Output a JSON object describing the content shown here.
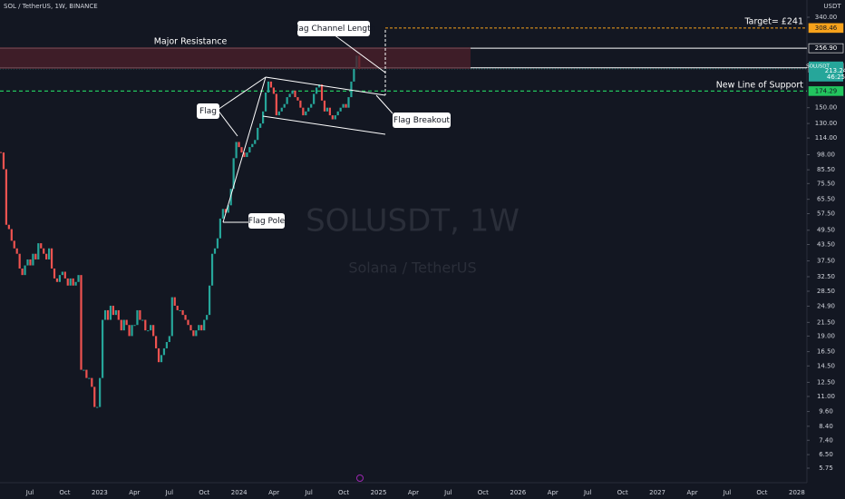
{
  "header": {
    "symbol": "SOL / TetherUS, 1W, BINANCE",
    "currency": "USDT"
  },
  "watermark": {
    "symbol": "SOLUSDT, 1W",
    "name": "Solana / TetherUS"
  },
  "annotations": {
    "resistance": "Major Resistance",
    "target": "Target= £241",
    "support": "New Line of Support",
    "channel": "Flag Channel Length",
    "flag": "Flag",
    "pole": "Flag Pole",
    "breakout": "Flag Breakout"
  },
  "levels": [
    {
      "price": 308.46,
      "color": "#f7a21b"
    },
    {
      "price": {
        "value": 256.9,
        "label": "256.90"
      },
      "color": "#ffffff"
    },
    {
      "price": {
        "value": 215.1,
        "label": "215.10"
      },
      "color": "#ffffff"
    },
    {
      "price": 174.29,
      "color": "#22c55e"
    }
  ],
  "last": {
    "symbol": "SOLUSDT",
    "price": 213.24,
    "countdown": "46:25",
    "color": "#26a69a"
  },
  "chart_data": {
    "type": "candlestick",
    "log": true,
    "ylim": [
      5.75,
      340
    ],
    "yticks": [
      {
        "value": 340,
        "label": "340.00"
      },
      {
        "value": 150,
        "label": "150.00"
      },
      {
        "value": 130,
        "label": "130.00"
      },
      {
        "value": 114,
        "label": "114.00"
      },
      {
        "value": 98,
        "label": "98.00"
      },
      {
        "value": 85.5,
        "label": "85.50"
      },
      {
        "value": 75.5,
        "label": "75.50"
      },
      {
        "value": 65.5,
        "label": "65.50"
      },
      {
        "value": 57.5,
        "label": "57.50"
      },
      {
        "value": 49.5,
        "label": "49.50"
      },
      {
        "value": 43.5,
        "label": "43.50"
      },
      {
        "value": 37.5,
        "label": "37.50"
      },
      {
        "value": 32.5,
        "label": "32.50"
      },
      {
        "value": 28.5,
        "label": "28.50"
      },
      {
        "value": 24.9,
        "label": "24.90"
      },
      {
        "value": 21.5,
        "label": "21.50"
      },
      {
        "value": 19,
        "label": "19.00"
      },
      {
        "value": 16.5,
        "label": "16.50"
      },
      {
        "value": 14.5,
        "label": "14.50"
      },
      {
        "value": 12.5,
        "label": "12.50"
      },
      {
        "value": 11,
        "label": "11.00"
      },
      {
        "value": 9.6,
        "label": "9.60"
      },
      {
        "value": 8.4,
        "label": "8.40"
      },
      {
        "value": 7.4,
        "label": "7.40"
      },
      {
        "value": 6.5,
        "label": "6.50"
      },
      {
        "value": 5.75,
        "label": "5.75"
      }
    ],
    "time_labels": [
      "Jul",
      "Oct",
      "2023",
      "Apr",
      "Jul",
      "Oct",
      "2024",
      "Apr",
      "Jul",
      "Oct",
      "2025",
      "Apr",
      "Jul",
      "Oct",
      "2026",
      "Apr",
      "Jul",
      "Oct",
      "2027",
      "Apr",
      "Jul",
      "Oct",
      "2028"
    ],
    "up_color": "#26a69a",
    "down_color": "#ef5350",
    "values": [
      100,
      86,
      52,
      50,
      45,
      42,
      40,
      35,
      33,
      36,
      38,
      36,
      40,
      38,
      44,
      42,
      40,
      38,
      42,
      35,
      32,
      31,
      33,
      34,
      32,
      30,
      32,
      30,
      31,
      33,
      14,
      14,
      13,
      13,
      12,
      10,
      10,
      13,
      22,
      24,
      22,
      25,
      23,
      24,
      22,
      20,
      22,
      21,
      19,
      21,
      21,
      24,
      22,
      22,
      20,
      20,
      21,
      19,
      17,
      15,
      16,
      17,
      18,
      19,
      27,
      25,
      24,
      24,
      23,
      22,
      21,
      20,
      19,
      20,
      21,
      20,
      22,
      23,
      30,
      40,
      42,
      46,
      55,
      60,
      58,
      62,
      72,
      95,
      110,
      105,
      100,
      96,
      100,
      105,
      108,
      112,
      125,
      130,
      145,
      172,
      190,
      180,
      170,
      140,
      145,
      150,
      155,
      165,
      170,
      175,
      165,
      160,
      150,
      140,
      145,
      150,
      155,
      170,
      180,
      185,
      160,
      145,
      150,
      140,
      135,
      140,
      145,
      150,
      155,
      150,
      165,
      190,
      215,
      240,
      213
    ]
  }
}
